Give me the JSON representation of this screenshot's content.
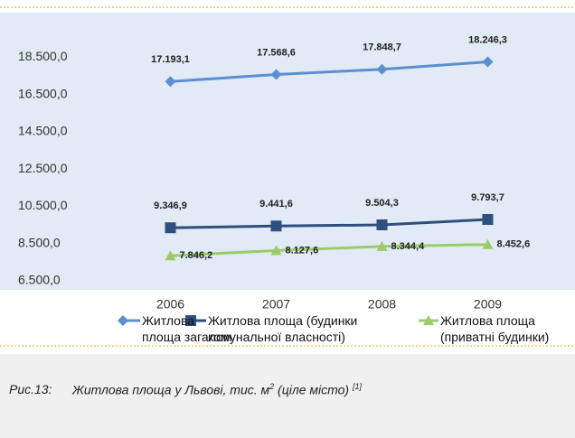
{
  "chart_data": {
    "type": "line",
    "categories": [
      "2006",
      "2007",
      "2008",
      "2009"
    ],
    "series": [
      {
        "name": "Житлова площа загалом",
        "color": "#5b8fd0",
        "marker": "diamond",
        "values": [
          17193.1,
          17568.6,
          17848.7,
          18246.3
        ],
        "value_labels": [
          "17.193,1",
          "17.568,6",
          "17.848,7",
          "18.246,3"
        ]
      },
      {
        "name": "Житлова площа (будинки комунальної власності)",
        "color": "#2e4f7e",
        "marker": "square",
        "values": [
          9346.9,
          9441.6,
          9504.3,
          9793.7
        ],
        "value_labels": [
          "9.346,9",
          "9.441,6",
          "9.504,3",
          "9.793,7"
        ]
      },
      {
        "name": "Житлова площа (приватні будинки)",
        "color": "#9ccc6a",
        "marker": "triangle",
        "values": [
          7846.2,
          8127.6,
          8344.4,
          8452.6
        ],
        "value_labels": [
          "7.846,2",
          "8.127,6",
          "8.344,4",
          "8.452,6"
        ]
      }
    ],
    "ylim": [
      6500,
      20500
    ],
    "yticks": [
      {
        "value": 6500,
        "label": "6.500,0"
      },
      {
        "value": 8500,
        "label": "8.500,0"
      },
      {
        "value": 10500,
        "label": "10.500,0"
      },
      {
        "value": 12500,
        "label": "12.500,0"
      },
      {
        "value": 14500,
        "label": "14.500,0"
      },
      {
        "value": 16500,
        "label": "16.500,0"
      },
      {
        "value": 18500,
        "label": "18.500,0"
      }
    ],
    "grid": false
  },
  "caption": {
    "label": "Рис.13:",
    "text": "Житлова площа у Львові, тис. м",
    "sup": "2",
    "rest": " (ціле місто)",
    "ref": "[1]"
  }
}
